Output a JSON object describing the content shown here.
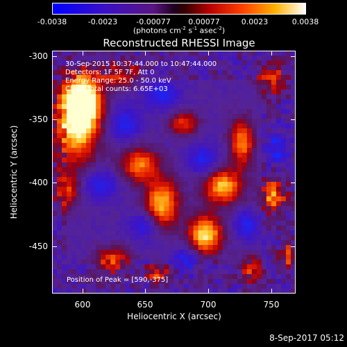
{
  "colorbar": {
    "tick_labels": [
      "-0.0038",
      "-0.0023",
      "-0.00077",
      "0.00077",
      "0.0023",
      "0.0038"
    ],
    "units_main": "(photons cm",
    "units_exp1": "-2",
    "units_mid1": " s",
    "units_exp2": "-1",
    "units_mid2": " asec",
    "units_exp3": "-2",
    "units_end": ")",
    "colors": [
      "#0000ff",
      "#3b00d8",
      "#6a00b4",
      "#000000",
      "#b30000",
      "#ff2a00",
      "#ff9000",
      "#ffd24a",
      "#ffffff"
    ]
  },
  "title": "Reconstructed RHESSI Image",
  "info_lines": [
    "30-Sep-2015 10:37:44.000 to 10:47:44.000",
    "Detectors: 1F 5F 7F, Att 0",
    "Energy Range: 25.0 - 50.0 keV",
    "Clean    Total counts: 6.65E+03"
  ],
  "peak_text": "Position of Peak = [590,-375]",
  "axes": {
    "x_title": "Heliocentric X (arcsec)",
    "y_title": "Heliocentric Y (arcsec)",
    "x_ticks": [
      "600",
      "650",
      "700",
      "750"
    ],
    "y_ticks": [
      "-300",
      "-350",
      "-400",
      "-450"
    ],
    "x_range": [
      576,
      768
    ],
    "y_range": [
      -488,
      -297
    ]
  },
  "datestamp": "8-Sep-2017 05:12"
}
